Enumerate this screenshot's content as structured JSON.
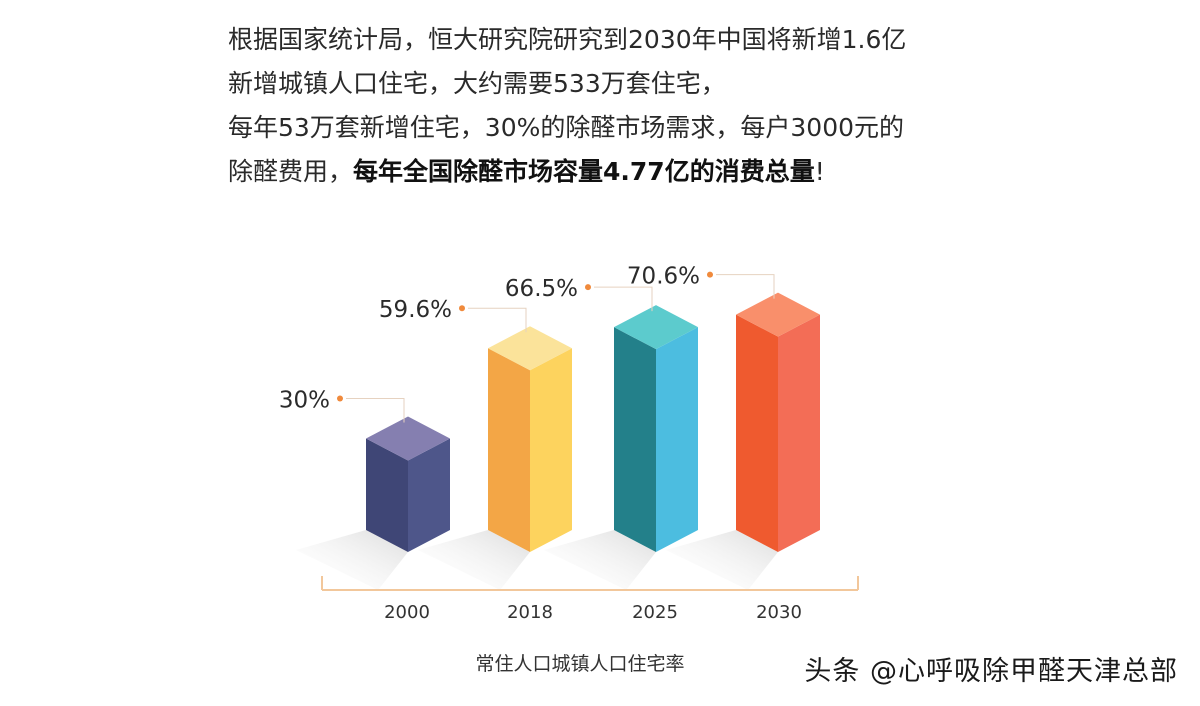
{
  "intro": {
    "line1": "根据国家统计局，恒大研究院研究到2030年中国将新增1.6亿",
    "line2": "新增城镇人口住宅，大约需要533万套住宅，",
    "line3": "每年53万套新增住宅，30%的除醛市场需求，每户3000元的",
    "line4_regular": "除醛费用，",
    "line4_bold": "每年全国除醛市场容量4.77亿的消费总量",
    "line4_end": "!"
  },
  "chart_data": {
    "type": "bar",
    "categories": [
      "2000",
      "2018",
      "2025",
      "2030"
    ],
    "values": [
      30,
      59.6,
      66.5,
      70.6
    ],
    "value_labels": [
      "30%",
      "59.6%",
      "66.5%",
      "70.6%"
    ],
    "xlabel": "常住人口城镇人口住宅率",
    "ylabel": "",
    "ylim": [
      0,
      80
    ],
    "bar_colors": [
      {
        "front": "#3f4676",
        "side": "#4e568a",
        "top": "#857fb0"
      },
      {
        "front": "#f3a646",
        "side": "#fdd35e",
        "top": "#fbe39a"
      },
      {
        "front": "#23808a",
        "side": "#4cbde0",
        "top": "#5ccbcd"
      },
      {
        "front": "#ef5a2f",
        "side": "#f36d56",
        "top": "#f98f6b"
      }
    ],
    "marker_color": "#f08a3c",
    "axis_color": "#f2c79b"
  },
  "watermark": "头条 @心呼吸除甲醛天津总部"
}
